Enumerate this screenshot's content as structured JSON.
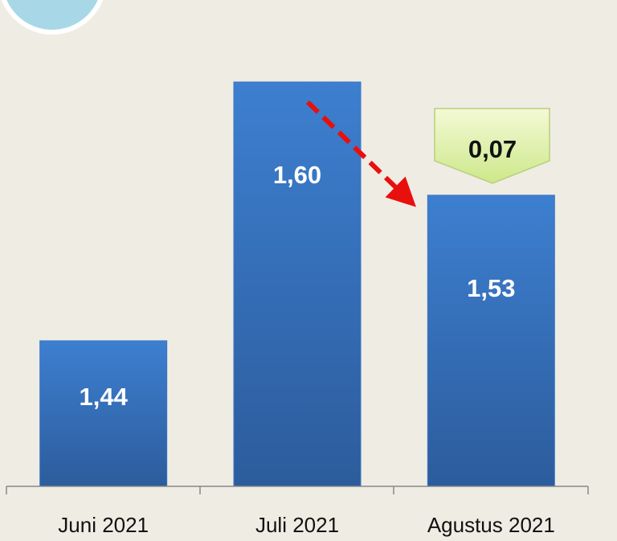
{
  "chart_data": {
    "type": "bar",
    "categories": [
      "Juni 2021",
      "Juli 2021",
      "Agustus 2021"
    ],
    "values": [
      1.44,
      1.6,
      1.53
    ],
    "value_labels": [
      "1,44",
      "1,60",
      "1,53"
    ],
    "color": "#3a76c4",
    "ylim": [
      1.35,
      1.65
    ],
    "annotation": "0,07"
  }
}
